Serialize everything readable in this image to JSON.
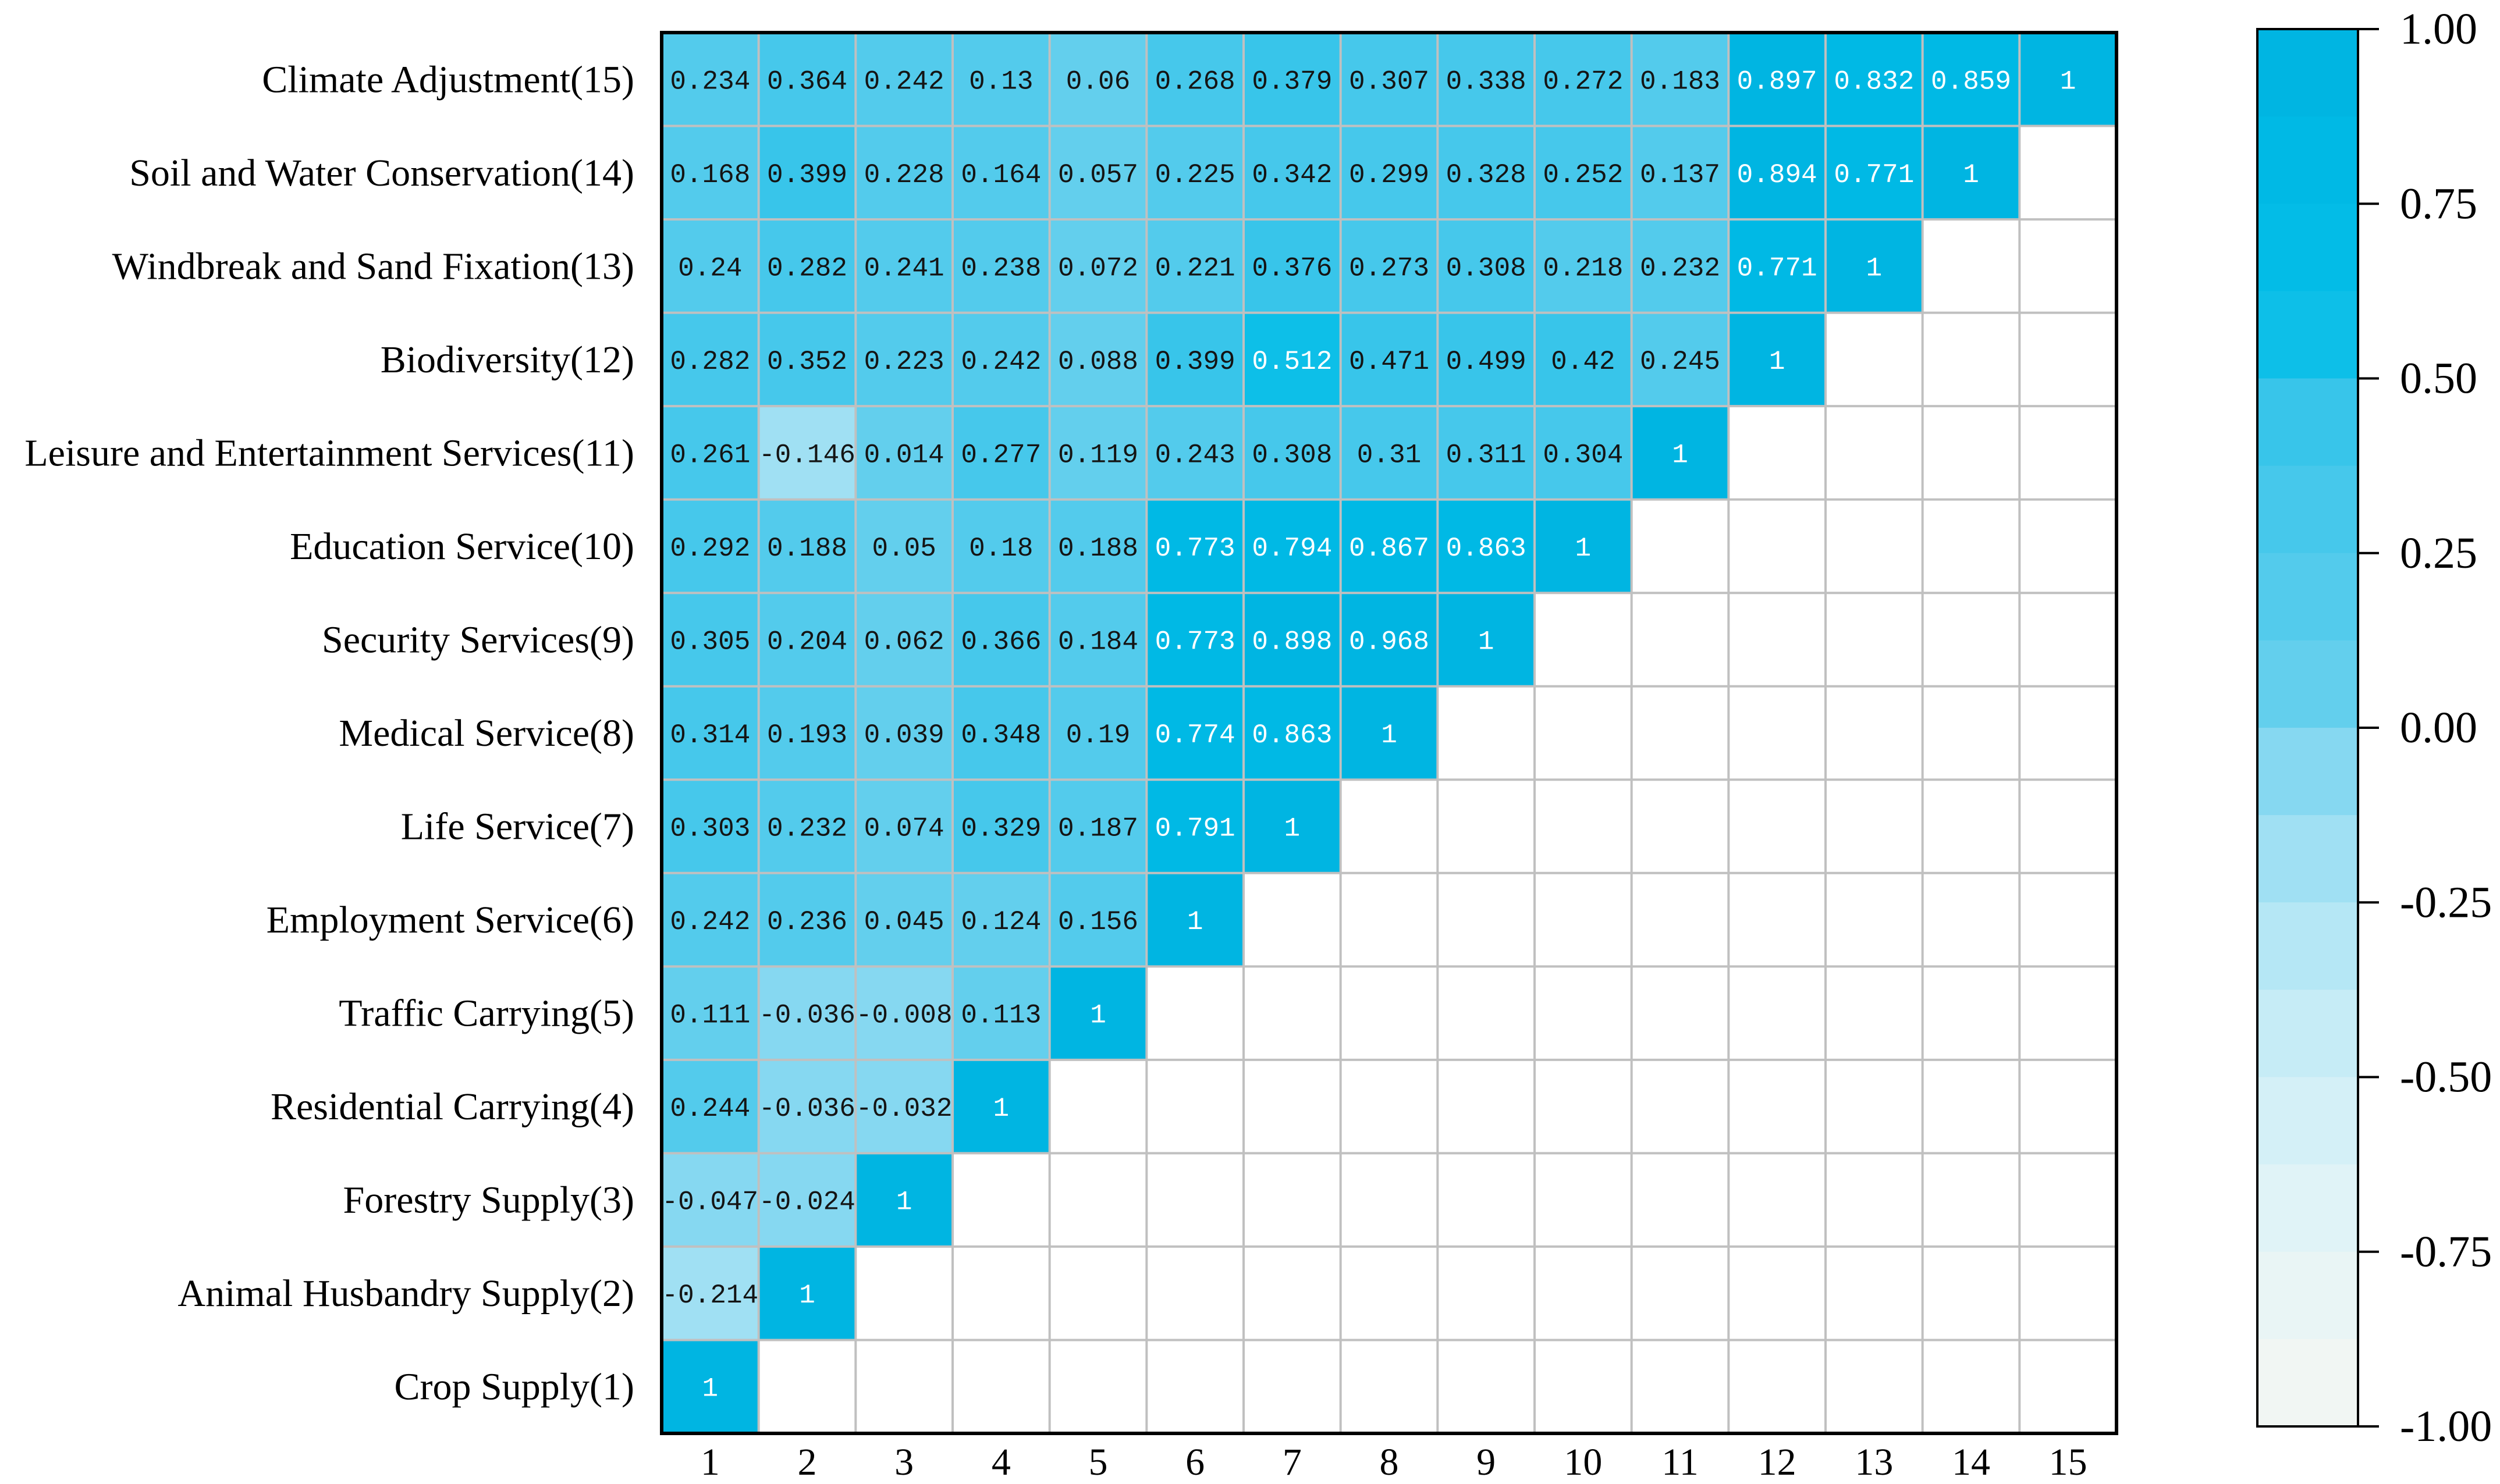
{
  "chart_data": {
    "type": "heatmap",
    "y_labels": [
      "Crop Supply(1)",
      "Animal Husbandry Supply(2)",
      "Forestry Supply(3)",
      "Residential Carrying(4)",
      "Traffic Carrying(5)",
      "Employment Service(6)",
      "Life Service(7)",
      "Medical Service(8)",
      "Security Services(9)",
      "Education Service(10)",
      "Leisure and Entertainment Services(11)",
      "Biodiversity(12)",
      "Windbreak and Sand Fixation(13)",
      "Soil and Water Conservation(14)",
      "Climate Adjustment(15)"
    ],
    "x_tick_labels": [
      "1",
      "2",
      "3",
      "4",
      "5",
      "6",
      "7",
      "8",
      "9",
      "10",
      "11",
      "12",
      "13",
      "14",
      "15"
    ],
    "matrix": [
      [
        1
      ],
      [
        -0.214,
        1
      ],
      [
        -0.047,
        -0.024,
        1
      ],
      [
        0.244,
        -0.036,
        -0.032,
        1
      ],
      [
        0.111,
        -0.036,
        -0.008,
        0.113,
        1
      ],
      [
        0.242,
        0.236,
        0.045,
        0.124,
        0.156,
        1
      ],
      [
        0.303,
        0.232,
        0.074,
        0.329,
        0.187,
        0.791,
        1
      ],
      [
        0.314,
        0.193,
        0.039,
        0.348,
        0.19,
        0.774,
        0.863,
        1
      ],
      [
        0.305,
        0.204,
        0.062,
        0.366,
        0.184,
        0.773,
        0.898,
        0.968,
        1
      ],
      [
        0.292,
        0.188,
        0.05,
        0.18,
        0.188,
        0.773,
        0.794,
        0.867,
        0.863,
        1
      ],
      [
        0.261,
        -0.146,
        0.014,
        0.277,
        0.119,
        0.243,
        0.308,
        0.31,
        0.311,
        0.304,
        1
      ],
      [
        0.282,
        0.352,
        0.223,
        0.242,
        0.088,
        0.399,
        0.512,
        0.471,
        0.499,
        0.42,
        0.245,
        1
      ],
      [
        0.24,
        0.282,
        0.241,
        0.238,
        0.072,
        0.221,
        0.376,
        0.273,
        0.308,
        0.218,
        0.232,
        0.771,
        1
      ],
      [
        0.168,
        0.399,
        0.228,
        0.164,
        0.057,
        0.225,
        0.342,
        0.299,
        0.328,
        0.252,
        0.137,
        0.894,
        0.771,
        1
      ],
      [
        0.234,
        0.364,
        0.242,
        0.13,
        0.06,
        0.268,
        0.379,
        0.307,
        0.338,
        0.272,
        0.183,
        0.897,
        0.832,
        0.859,
        1
      ]
    ],
    "colorbar": {
      "range": [
        -1,
        1
      ],
      "tick_values": [
        1,
        0.75,
        0.5,
        0.25,
        0,
        -0.25,
        -0.5,
        -0.75,
        -1
      ],
      "tick_labels": [
        "1.00",
        "0.75",
        "0.50",
        "0.25",
        "0.00",
        "-0.25",
        "-0.50",
        "-0.75",
        "-1.00"
      ],
      "colors": [
        "#00B5E2",
        "#00B9E5",
        "#03BCE7",
        "#0DBFE8",
        "#38C5EA",
        "#46C8EB",
        "#53CBEC",
        "#63CFED",
        "#86D8F1",
        "#A0E0F3",
        "#B5E7F5",
        "#C6ECF6",
        "#D4F0F7",
        "#E0F3F7",
        "#E9F5F5",
        "#F1F6F3"
      ]
    }
  },
  "colors": {
    "grid": "#C0C0C0",
    "frame": "#000000",
    "text_dark": "#141414",
    "text_light": "#FFFFFF",
    "background": "#FFFFFF"
  }
}
